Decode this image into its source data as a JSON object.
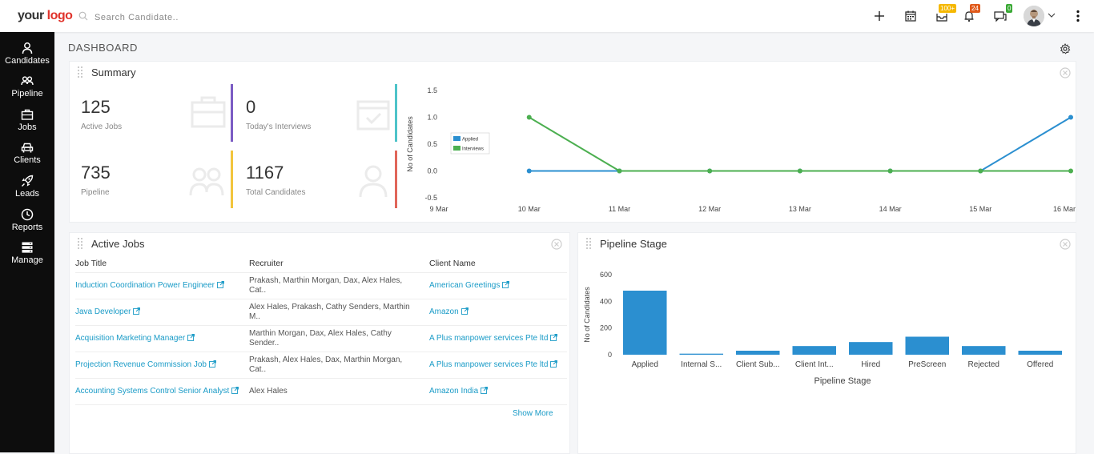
{
  "header": {
    "logo_main": "your",
    "logo_accent": "logo",
    "search_placeholder": "Search Candidate..",
    "badges": {
      "mail": "100+",
      "notifications": "24",
      "chat": "0"
    },
    "colors": {
      "mail_badge": "#f5b800",
      "notif_badge": "#e05a1b",
      "chat_badge": "#3aa935"
    }
  },
  "sidebar": {
    "items": [
      {
        "label": "Candidates",
        "icon": "user-icon"
      },
      {
        "label": "Pipeline",
        "icon": "users-icon"
      },
      {
        "label": "Jobs",
        "icon": "briefcase-icon"
      },
      {
        "label": "Clients",
        "icon": "car-icon"
      },
      {
        "label": "Leads",
        "icon": "rocket-icon"
      },
      {
        "label": "Reports",
        "icon": "clock-icon"
      },
      {
        "label": "Manage",
        "icon": "server-icon"
      }
    ]
  },
  "page": {
    "title": "DASHBOARD"
  },
  "summary": {
    "title": "Summary",
    "stats": [
      {
        "value": "125",
        "label": "Active Jobs",
        "color": "#7b5cc4"
      },
      {
        "value": "0",
        "label": "Today's Interviews",
        "color": "#4ec3c9"
      },
      {
        "value": "735",
        "label": "Pipeline",
        "color": "#f2c53d"
      },
      {
        "value": "1167",
        "label": "Total Candidates",
        "color": "#e0665a"
      }
    ]
  },
  "chart_data": [
    {
      "type": "line",
      "x": [
        "9 Mar",
        "10 Mar",
        "11 Mar",
        "12 Mar",
        "13 Mar",
        "14 Mar",
        "15 Mar",
        "16 Mar"
      ],
      "series": [
        {
          "name": "Applied",
          "color": "#2b8fd0",
          "values": [
            null,
            0,
            0,
            0,
            0,
            0,
            0,
            1
          ]
        },
        {
          "name": "Interviews",
          "color": "#4caf50",
          "values": [
            null,
            1,
            0,
            0,
            0,
            0,
            0,
            0
          ]
        }
      ],
      "ylabel": "No of Candidates",
      "yticks": [
        "1.5",
        "1.0",
        "0.5",
        "0.0",
        "-0.5"
      ],
      "ylim": [
        -0.5,
        1.5
      ],
      "legend": "top-left",
      "grid": false
    },
    {
      "type": "bar",
      "title": "Pipeline Stage",
      "categories": [
        "Applied",
        "Internal S...",
        "Client Sub...",
        "Client Int...",
        "Hired",
        "PreScreen",
        "Rejected",
        "Offered"
      ],
      "values": [
        480,
        8,
        30,
        65,
        95,
        135,
        65,
        30
      ],
      "xlabel": "Pipeline Stage",
      "ylabel": "No of Candidates",
      "yticks": [
        "600",
        "400",
        "200",
        "0"
      ],
      "ylim": [
        0,
        600
      ],
      "color": "#2b8fd0"
    }
  ],
  "active_jobs": {
    "title": "Active Jobs",
    "columns": [
      "Job Title",
      "Recruiter",
      "Client Name"
    ],
    "rows": [
      {
        "title": "Induction Coordination Power Engineer",
        "recruiter_1": "Prakash, Marthin Morgan, Dax, Alex Hales,",
        "recruiter_2": "Cat..",
        "client": "American Greetings",
        "client_2": ""
      },
      {
        "title": "Java Developer",
        "recruiter_1": "Alex Hales, Prakash, Cathy Senders, Marthin",
        "recruiter_2": "M..",
        "client": "Amazon",
        "client_2": ""
      },
      {
        "title": "Acquisition Marketing Manager",
        "recruiter_1": "Marthin Morgan, Dax, Alex Hales, Cathy",
        "recruiter_2": "Sender..",
        "client": "A Plus manpower services Pte ltd",
        "client_2": ""
      },
      {
        "title": "Projection Revenue Commission Job",
        "recruiter_1": "Prakash, Alex Hales, Dax, Marthin Morgan,",
        "recruiter_2": "Cat..",
        "client": "A Plus manpower services Pte ltd",
        "client_2": ""
      },
      {
        "title": "Accounting Systems Control Senior Analyst",
        "recruiter_1": "Alex Hales",
        "recruiter_2": "",
        "client": "Amazon India",
        "client_2": ""
      }
    ],
    "show_more": "Show More"
  },
  "pipeline": {
    "title": "Pipeline Stage"
  }
}
